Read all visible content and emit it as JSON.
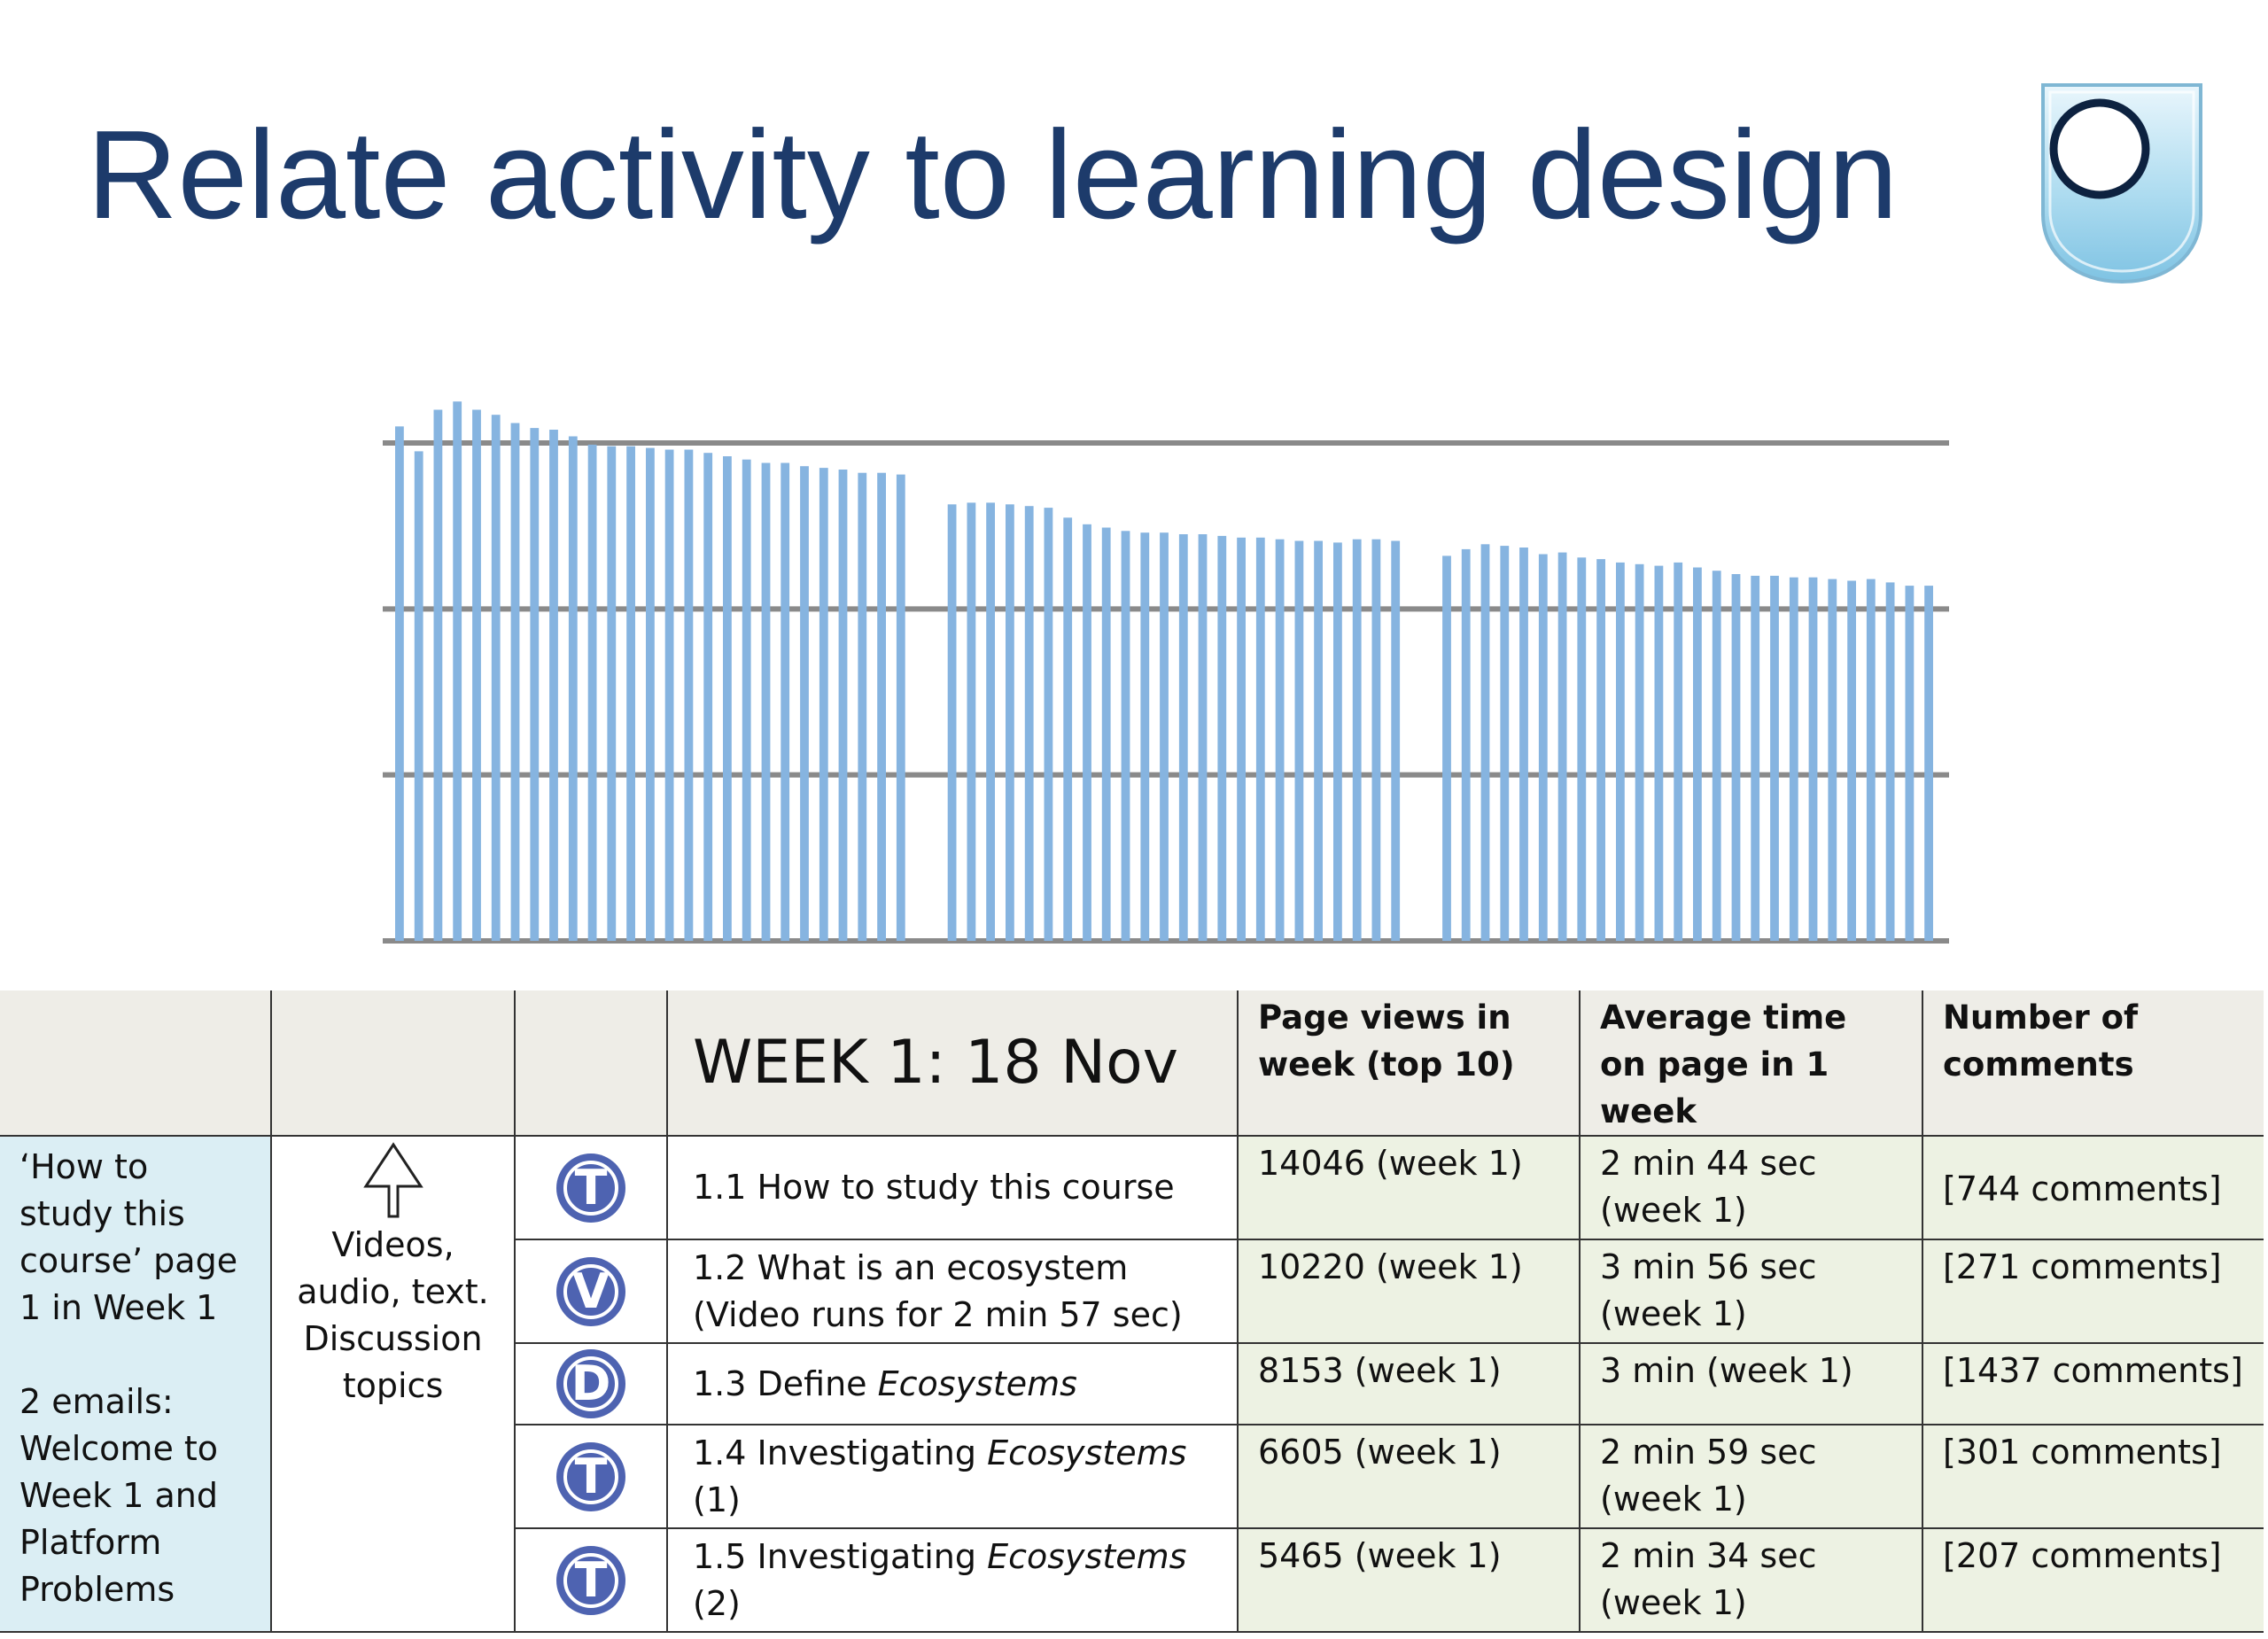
{
  "slide": {
    "title": "Relate activity to learning design",
    "logo_icon": "open-university-shield-icon",
    "accent_color": "#1d3b6b"
  },
  "chart_data": {
    "type": "bar",
    "bar_color": "#86b4e0",
    "grid": true,
    "ylim": [
      0,
      30
    ],
    "gridlines": [
      0,
      10,
      20,
      30
    ],
    "groups": [
      {
        "values": [
          31,
          29.5,
          32,
          32.5,
          32,
          31.7,
          31.2,
          30.9,
          30.8,
          30.4,
          29.9,
          29.8,
          29.8,
          29.7,
          29.6,
          29.6,
          29.4,
          29.2,
          29,
          28.8,
          28.8,
          28.6,
          28.5,
          28.4,
          28.2,
          28.2,
          28.1
        ]
      },
      {
        "values": [
          26.3,
          26.4,
          26.4,
          26.3,
          26.2,
          26.1,
          25.5,
          25.1,
          24.9,
          24.7,
          24.6,
          24.6,
          24.5,
          24.5,
          24.4,
          24.3,
          24.3,
          24.2,
          24.1,
          24.1,
          24,
          24.2,
          24.2,
          24.1
        ]
      },
      {
        "values": [
          23.2,
          23.6,
          23.9,
          23.8,
          23.7,
          23.3,
          23.4,
          23.1,
          23,
          22.8,
          22.7,
          22.6,
          22.8,
          22.5,
          22.3,
          22.1,
          22,
          22,
          21.9,
          21.9,
          21.8,
          21.7,
          21.8,
          21.6,
          21.4,
          21.4
        ]
      }
    ]
  },
  "table": {
    "week_title": "WEEK 1: 18 Nov",
    "col_page_views": "Page views in week (top 10)",
    "col_avg_time": "Average time on page in 1 week",
    "col_comments": "Number of comments",
    "side_text_1": "‘How to study this course’ page 1 in Week 1",
    "side_text_2": "2 emails: Welcome to Week 1 and Platform Problems",
    "media_text": "Videos, audio, text. Discussion topics",
    "media_icon": "arrow-up-icon",
    "badge_color": "#4e63b1",
    "rows": [
      {
        "badge": "T",
        "activity_pre": "1.1 How to study this course",
        "activity_em": "",
        "activity_post": "",
        "activity_line2": "",
        "views": "14046 (week 1)",
        "time": "2 min 44 sec (week 1)",
        "comments": "[744 comments]"
      },
      {
        "badge": "V",
        "activity_pre": "1.2 What is an ecosystem",
        "activity_em": "",
        "activity_post": "",
        "activity_line2": "(Video runs for 2 min 57 sec)",
        "views": "10220 (week 1)",
        "time": "3 min 56 sec (week 1)",
        "comments": "[271 comments]"
      },
      {
        "badge": "D",
        "activity_pre": "1.3 Define ",
        "activity_em": "Ecosystems",
        "activity_post": "",
        "activity_line2": "",
        "views": "8153 (week 1)",
        "time": "3 min  (week 1)",
        "comments": "[1437 comments]"
      },
      {
        "badge": "T",
        "activity_pre": "1.4 Investigating ",
        "activity_em": "Ecosystems",
        "activity_post": " (1)",
        "activity_line2": "",
        "views": "6605 (week 1)",
        "time": "2 min 59 sec (week 1)",
        "comments": "[301 comments]"
      },
      {
        "badge": "T",
        "activity_pre": "1.5 Investigating ",
        "activity_em": "Ecosystems",
        "activity_post": " (2)",
        "activity_line2": "",
        "views": "5465 (week 1)",
        "time": "2 min 34 sec (week 1)",
        "comments": "[207 comments]"
      }
    ]
  }
}
